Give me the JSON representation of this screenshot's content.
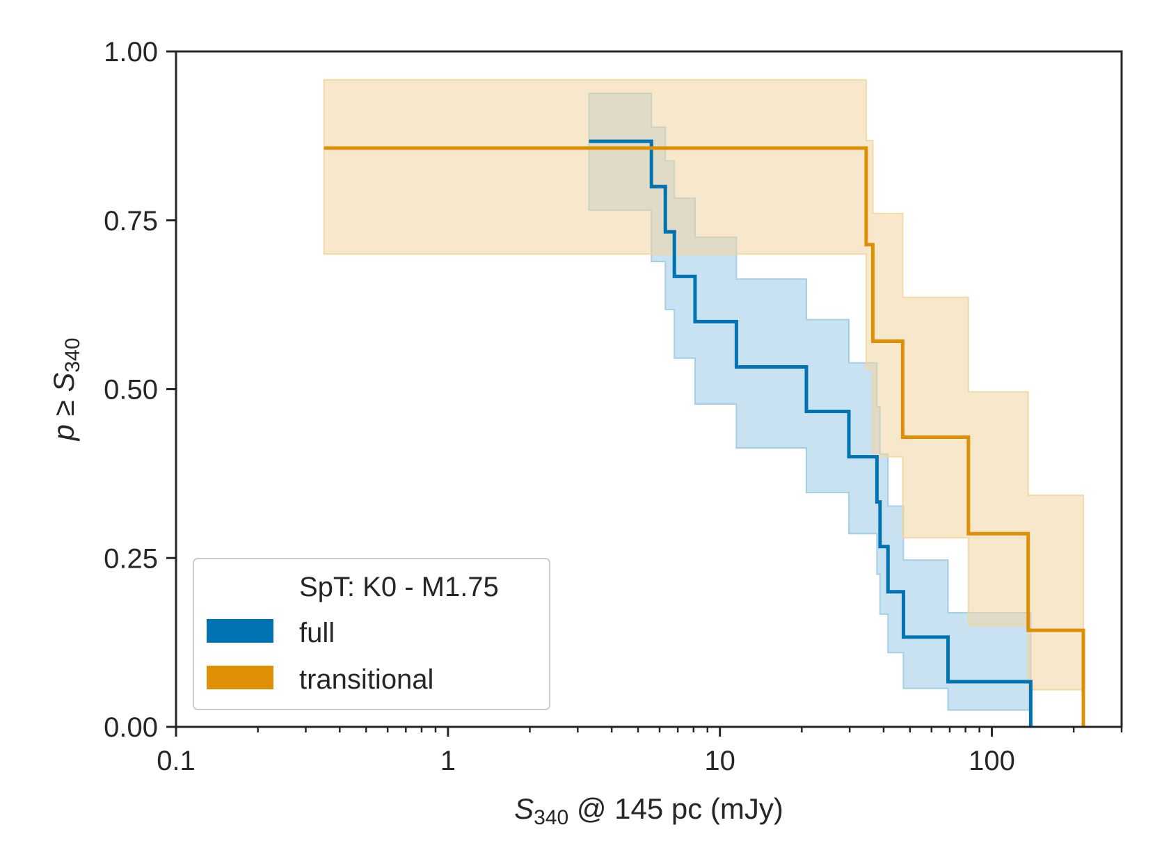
{
  "chart_data": {
    "type": "line",
    "subtype": "step-survival-curve",
    "title": "",
    "xscale": "log",
    "xlim": [
      0.1,
      300
    ],
    "ylim": [
      0,
      1
    ],
    "xlabel": {
      "main": "S",
      "sub": "340",
      "rest": " @ 145 pc (mJy)"
    },
    "ylabel": {
      "pre": "p ≥ ",
      "main": "S",
      "sub": "340"
    },
    "x_ticks": [
      {
        "value": 0.1,
        "label": "0.1"
      },
      {
        "value": 1,
        "label": "1"
      },
      {
        "value": 10,
        "label": "10"
      },
      {
        "value": 100,
        "label": "100"
      }
    ],
    "y_ticks": [
      {
        "value": 0.0,
        "label": "0.00"
      },
      {
        "value": 0.25,
        "label": "0.25"
      },
      {
        "value": 0.5,
        "label": "0.50"
      },
      {
        "value": 0.75,
        "label": "0.75"
      },
      {
        "value": 1.0,
        "label": "1.00"
      }
    ],
    "legend": {
      "placement": "lower-left",
      "title": "SpT: K0 - M1.75",
      "entries": [
        {
          "series": "full",
          "label": "full"
        },
        {
          "series": "transitional",
          "label": "transitional"
        }
      ]
    },
    "series": [
      {
        "name": "full",
        "color": "#0173b2",
        "band_color": "#9ccbe6",
        "x": [
          3.3,
          5.6,
          6.3,
          6.8,
          8.1,
          11.5,
          20.8,
          29.8,
          37.8,
          38.8,
          41.5,
          47.3,
          69.0,
          139.0
        ],
        "y": [
          0.867,
          0.8,
          0.733,
          0.667,
          0.6,
          0.533,
          0.467,
          0.4,
          0.333,
          0.267,
          0.2,
          0.133,
          0.067,
          0.0
        ],
        "lower": [
          0.765,
          0.689,
          0.618,
          0.546,
          0.478,
          0.413,
          0.347,
          0.286,
          0.226,
          0.167,
          0.11,
          0.057,
          0.025,
          0.0
        ],
        "upper": [
          0.938,
          0.888,
          0.838,
          0.783,
          0.725,
          0.663,
          0.603,
          0.539,
          0.474,
          0.404,
          0.327,
          0.247,
          0.169,
          0.0
        ]
      },
      {
        "name": "transitional",
        "color": "#de8f05",
        "band_color": "#f1d6a2",
        "x": [
          0.35,
          34.5,
          36.5,
          47.0,
          82.0,
          136.0,
          217.0
        ],
        "y": [
          0.857,
          0.714,
          0.571,
          0.429,
          0.286,
          0.143,
          0.0
        ],
        "lower": [
          0.7,
          0.53,
          0.4,
          0.28,
          0.15,
          0.055,
          0.0
        ],
        "upper": [
          0.958,
          0.868,
          0.76,
          0.636,
          0.496,
          0.343,
          0.0
        ]
      }
    ]
  }
}
